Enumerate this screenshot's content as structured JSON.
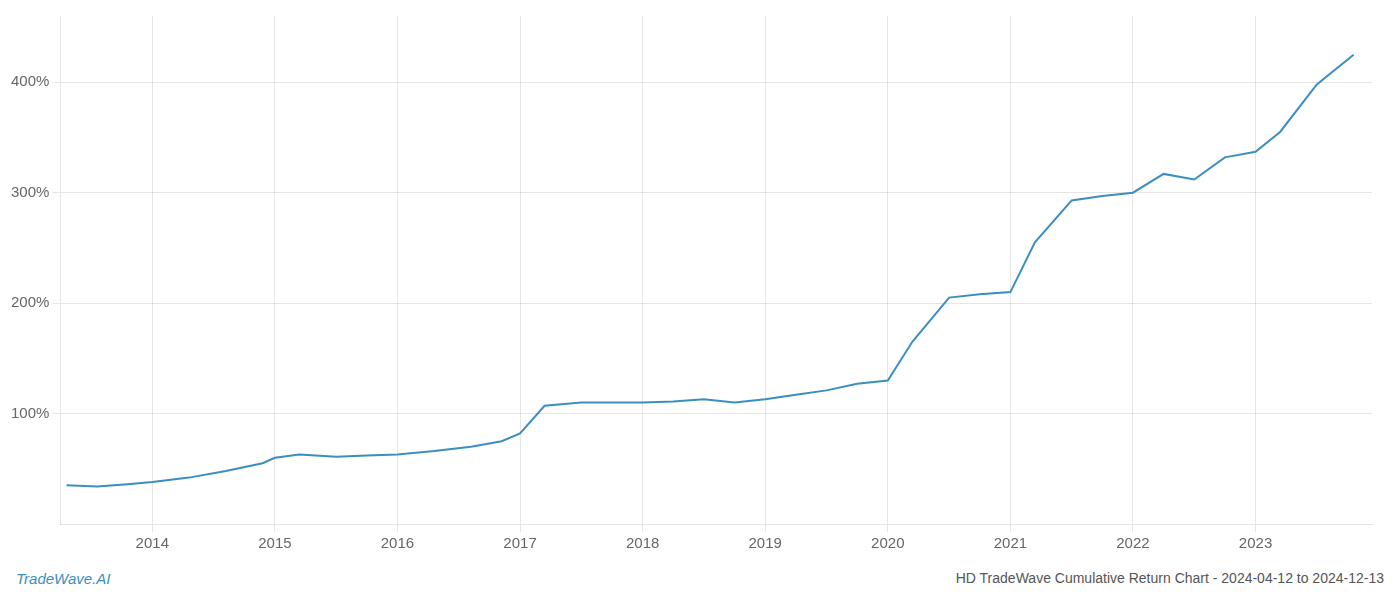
{
  "chart_data": {
    "type": "line",
    "title": "HD TradeWave Cumulative Return Chart - 2024-04-12 to 2024-12-13",
    "annotations": [
      "TradeWave.AI"
    ],
    "x": [
      2013.3,
      2013.55,
      2013.8,
      2014.0,
      2014.3,
      2014.6,
      2014.9,
      2015.0,
      2015.2,
      2015.5,
      2015.75,
      2016.0,
      2016.3,
      2016.6,
      2016.85,
      2017.0,
      2017.2,
      2017.5,
      2017.75,
      2018.0,
      2018.25,
      2018.5,
      2018.75,
      2019.0,
      2019.25,
      2019.5,
      2019.75,
      2020.0,
      2020.2,
      2020.5,
      2020.75,
      2021.0,
      2021.2,
      2021.5,
      2021.75,
      2022.0,
      2022.25,
      2022.5,
      2022.75,
      2023.0,
      2023.2,
      2023.5,
      2023.8
    ],
    "values": [
      35,
      34,
      36,
      38,
      42,
      48,
      55,
      60,
      63,
      61,
      62,
      63,
      66,
      70,
      75,
      82,
      107,
      110,
      110,
      110,
      111,
      113,
      110,
      113,
      117,
      121,
      127,
      130,
      165,
      205,
      208,
      210,
      255,
      293,
      297,
      300,
      317,
      312,
      332,
      337,
      355,
      398,
      425
    ],
    "color": "#3a8fc0",
    "xlim": [
      2013.25,
      2023.95
    ],
    "xticks": [
      2014,
      2015,
      2016,
      2017,
      2018,
      2019,
      2020,
      2021,
      2022,
      2023
    ],
    "ylim": [
      0,
      460
    ],
    "yticks": [
      {
        "value": 100,
        "label": "100%"
      },
      {
        "value": 200,
        "label": "200%"
      },
      {
        "value": 300,
        "label": "300%"
      },
      {
        "value": 400,
        "label": "400%"
      }
    ],
    "grid": true
  }
}
